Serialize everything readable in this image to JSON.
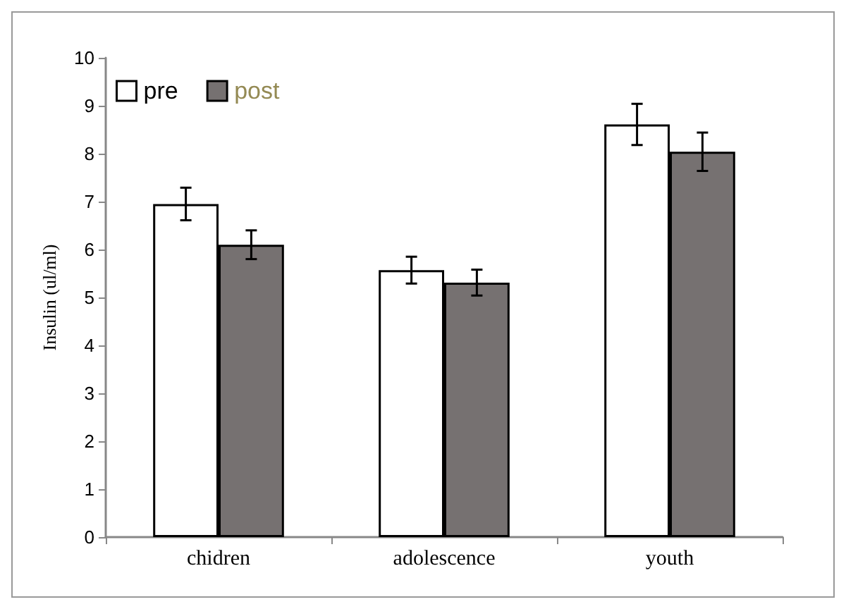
{
  "chart_data": {
    "type": "bar",
    "ylabel": "Insulin (ul/ml)",
    "categories": [
      "chidren",
      "adolescence",
      "youth"
    ],
    "series": [
      {
        "name": "pre",
        "color": "#ffffff",
        "values": [
          6.95,
          5.57,
          8.61
        ],
        "errors": [
          0.34,
          0.28,
          0.43
        ]
      },
      {
        "name": "post",
        "color": "#767171",
        "values": [
          6.1,
          5.31,
          8.04
        ],
        "errors": [
          0.3,
          0.27,
          0.4
        ]
      }
    ],
    "ylim": [
      0,
      10
    ],
    "yticks": [
      0,
      1,
      2,
      3,
      4,
      5,
      6,
      7,
      8,
      9,
      10
    ],
    "grid": false,
    "legend": "top left"
  }
}
